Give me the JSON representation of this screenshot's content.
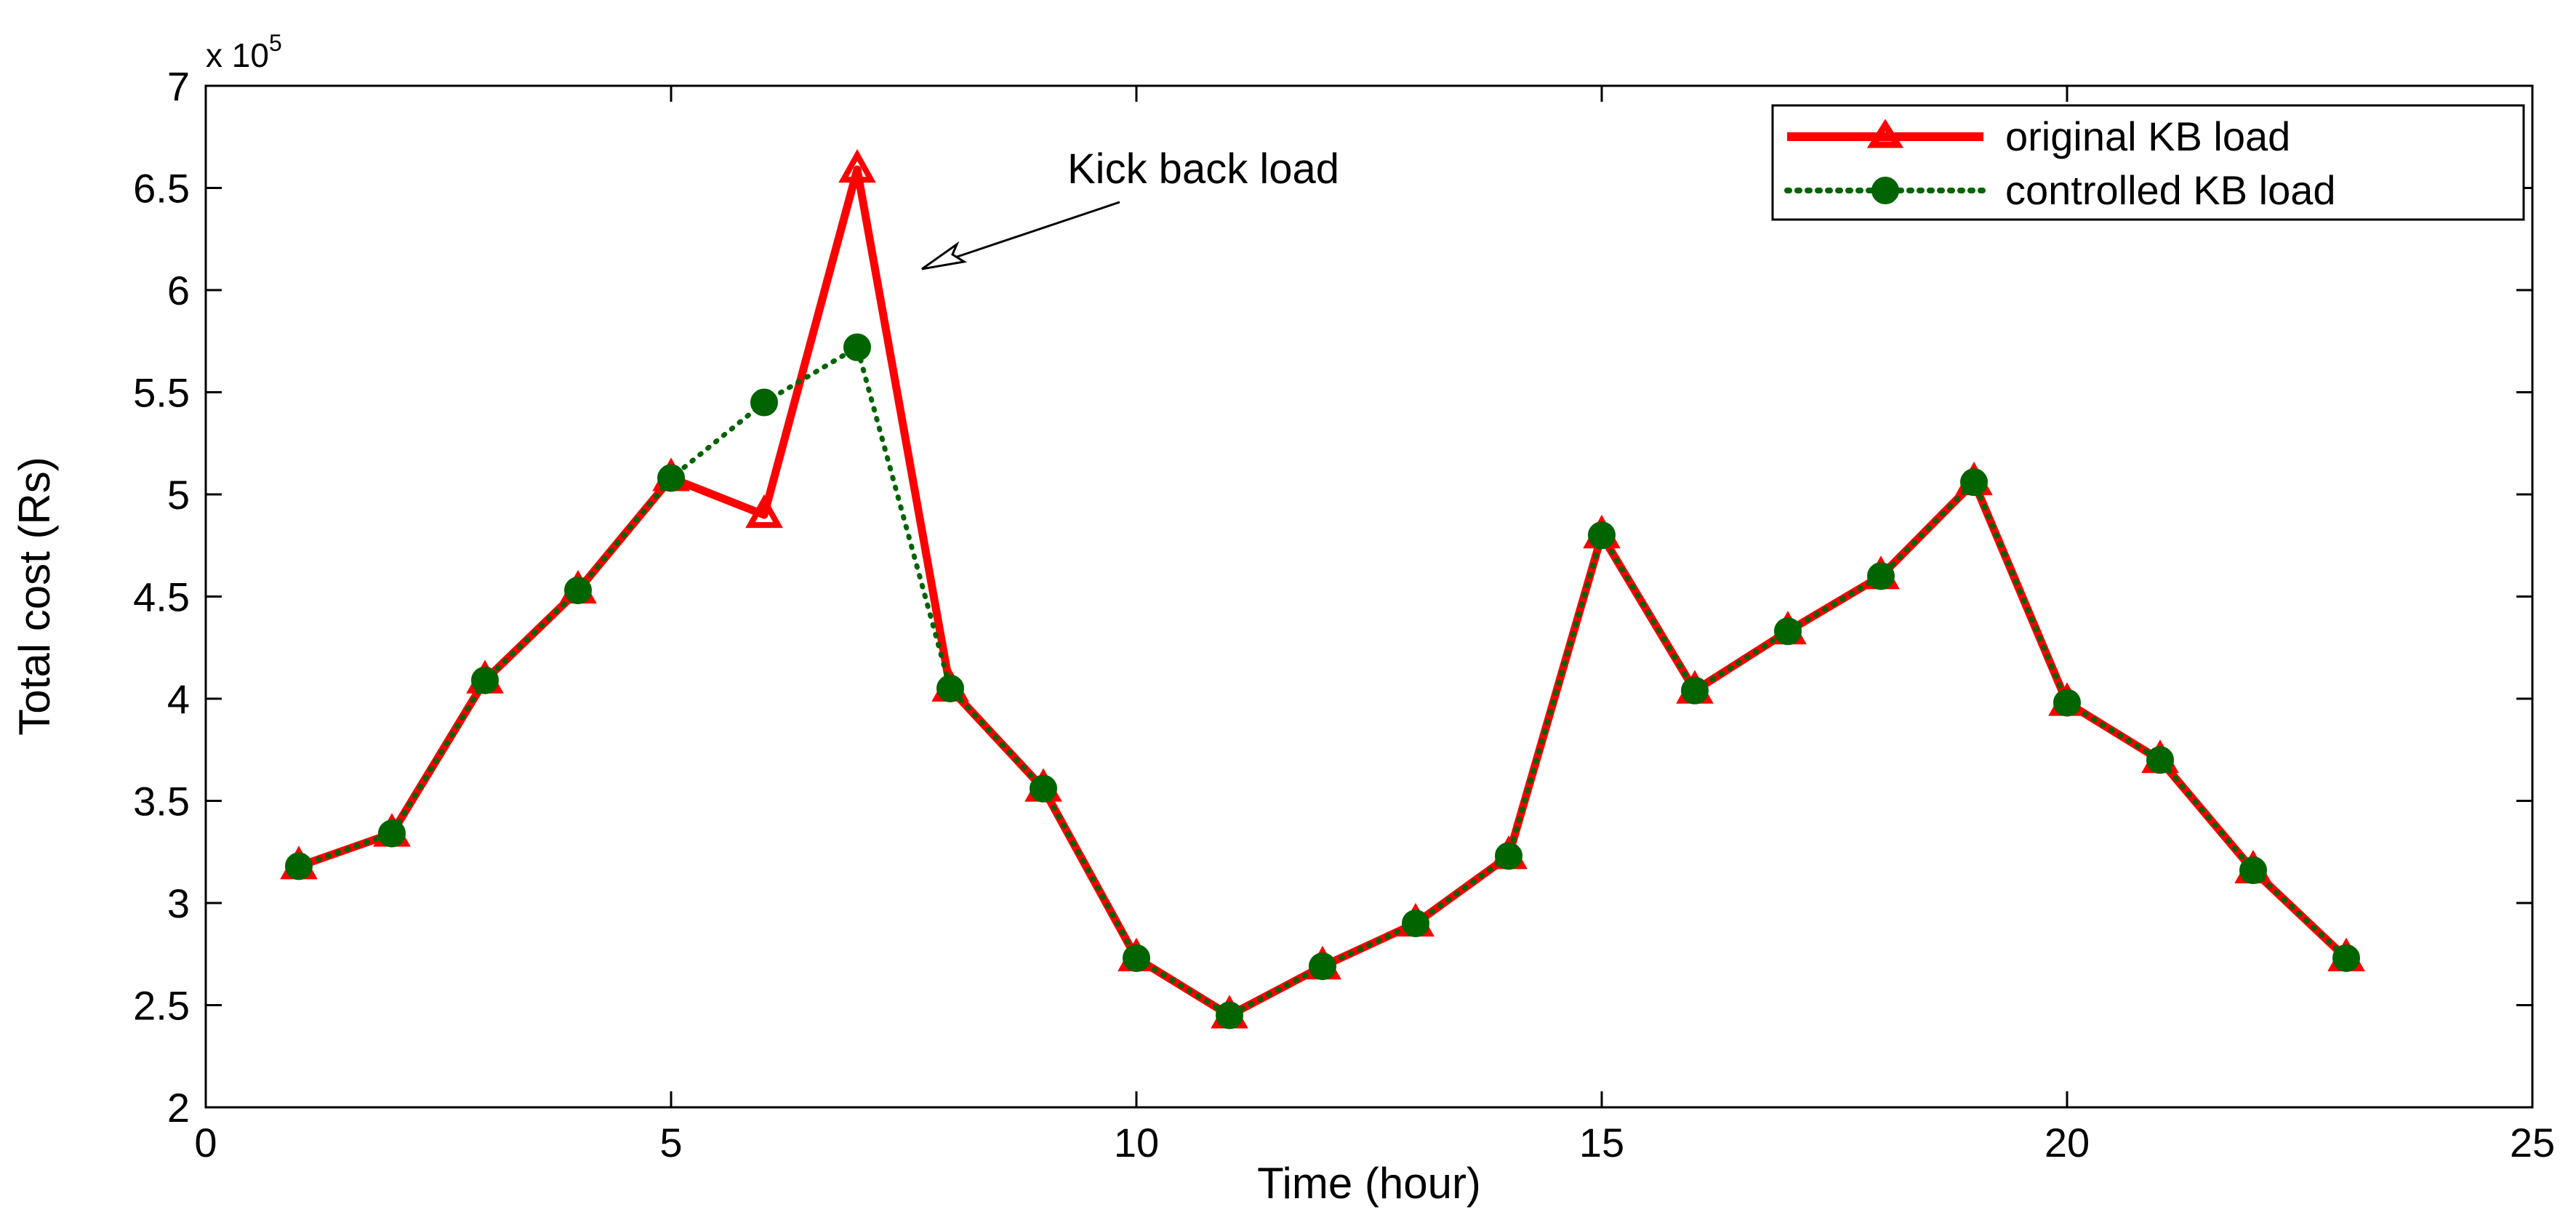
{
  "chart_data": {
    "type": "line",
    "xlabel": "Time (hour)",
    "ylabel": "Total cost (Rs)",
    "y_exponent_base": "x 10",
    "y_exponent_power": "5",
    "xlim": [
      0,
      25
    ],
    "ylim": [
      2,
      7
    ],
    "x_ticks": [
      0,
      5,
      10,
      15,
      20,
      25
    ],
    "y_ticks": [
      2,
      2.5,
      3,
      3.5,
      4,
      4.5,
      5,
      5.5,
      6,
      6.5,
      7
    ],
    "x_tick_labels": [
      "0",
      "5",
      "10",
      "15",
      "20",
      "25"
    ],
    "y_tick_labels": [
      "2",
      "2.5",
      "3",
      "3.5",
      "4",
      "4.5",
      "5",
      "5.5",
      "6",
      "6.5",
      "7"
    ],
    "grid": false,
    "legend_position": "top-right",
    "annotation": "Kick back load",
    "x": [
      1,
      2,
      3,
      4,
      5,
      6,
      7,
      8,
      9,
      10,
      11,
      12,
      13,
      14,
      15,
      16,
      17,
      18,
      19,
      20,
      21,
      22,
      23
    ],
    "series": [
      {
        "name": "original KB load",
        "color": "#ff0000",
        "style": "solid",
        "marker": "triangle",
        "values": [
          3.18,
          3.34,
          4.09,
          4.53,
          5.08,
          4.9,
          6.59,
          4.05,
          3.56,
          2.73,
          2.45,
          2.69,
          2.9,
          3.23,
          4.8,
          4.04,
          4.33,
          4.6,
          5.06,
          3.98,
          3.7,
          3.16,
          2.73
        ]
      },
      {
        "name": "controlled KB load",
        "color": "#006400",
        "style": "dotted",
        "marker": "circle",
        "values": [
          3.18,
          3.34,
          4.09,
          4.53,
          5.08,
          5.45,
          5.72,
          4.05,
          3.56,
          2.73,
          2.45,
          2.69,
          2.9,
          3.23,
          4.8,
          4.04,
          4.33,
          4.6,
          5.06,
          3.98,
          3.7,
          3.16,
          2.73
        ]
      }
    ]
  }
}
